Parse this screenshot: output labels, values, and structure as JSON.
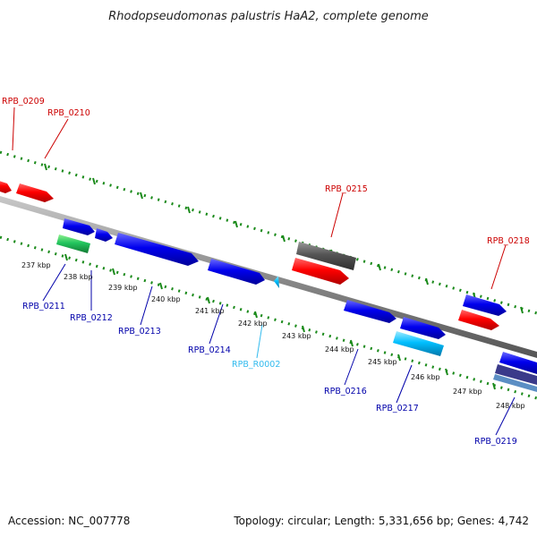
{
  "title": "Rhodopseudomonas palustris HaA2, complete genome",
  "footer": {
    "accession": "Accession: NC_007778",
    "summary": "Topology: circular; Length: 5,331,656 bp; Genes: 4,742"
  },
  "colors": {
    "forward_gene": "#ff0000",
    "reverse_gene": "#0000ee",
    "rrna_gene": "#22c55e",
    "trna_gene": "#00bfff",
    "pseudo_gene": "#555555",
    "label_forward": "#cc0000",
    "label_reverse": "#0000aa",
    "label_rna": "#33bbee",
    "backbone": "#8a8a8a",
    "ticks": "#1a8a1a"
  },
  "axis": {
    "unit": "kbp",
    "ticks": [
      "237 kbp",
      "238 kbp",
      "239 kbp",
      "240 kbp",
      "241 kbp",
      "242 kbp",
      "243 kbp",
      "244 kbp",
      "245 kbp",
      "246 kbp",
      "247 kbp",
      "248 kbp"
    ]
  },
  "labels": [
    {
      "id": "RPB_0209",
      "text": "RPB_0209",
      "type": "forward"
    },
    {
      "id": "RPB_0210",
      "text": "RPB_0210",
      "type": "forward"
    },
    {
      "id": "RPB_0215",
      "text": "RPB_0215",
      "type": "forward"
    },
    {
      "id": "RPB_0218",
      "text": "RPB_0218",
      "type": "forward"
    },
    {
      "id": "RPB_0211",
      "text": "RPB_0211",
      "type": "reverse"
    },
    {
      "id": "RPB_0212",
      "text": "RPB_0212",
      "type": "reverse"
    },
    {
      "id": "RPB_0213",
      "text": "RPB_0213",
      "type": "reverse"
    },
    {
      "id": "RPB_0214",
      "text": "RPB_0214",
      "type": "reverse"
    },
    {
      "id": "RPB_R0002",
      "text": "RPB_R0002",
      "type": "rna"
    },
    {
      "id": "RPB_0216",
      "text": "RPB_0216",
      "type": "reverse"
    },
    {
      "id": "RPB_0217",
      "text": "RPB_0217",
      "type": "reverse"
    },
    {
      "id": "RPB_0219",
      "text": "RPB_0219",
      "type": "reverse"
    }
  ]
}
